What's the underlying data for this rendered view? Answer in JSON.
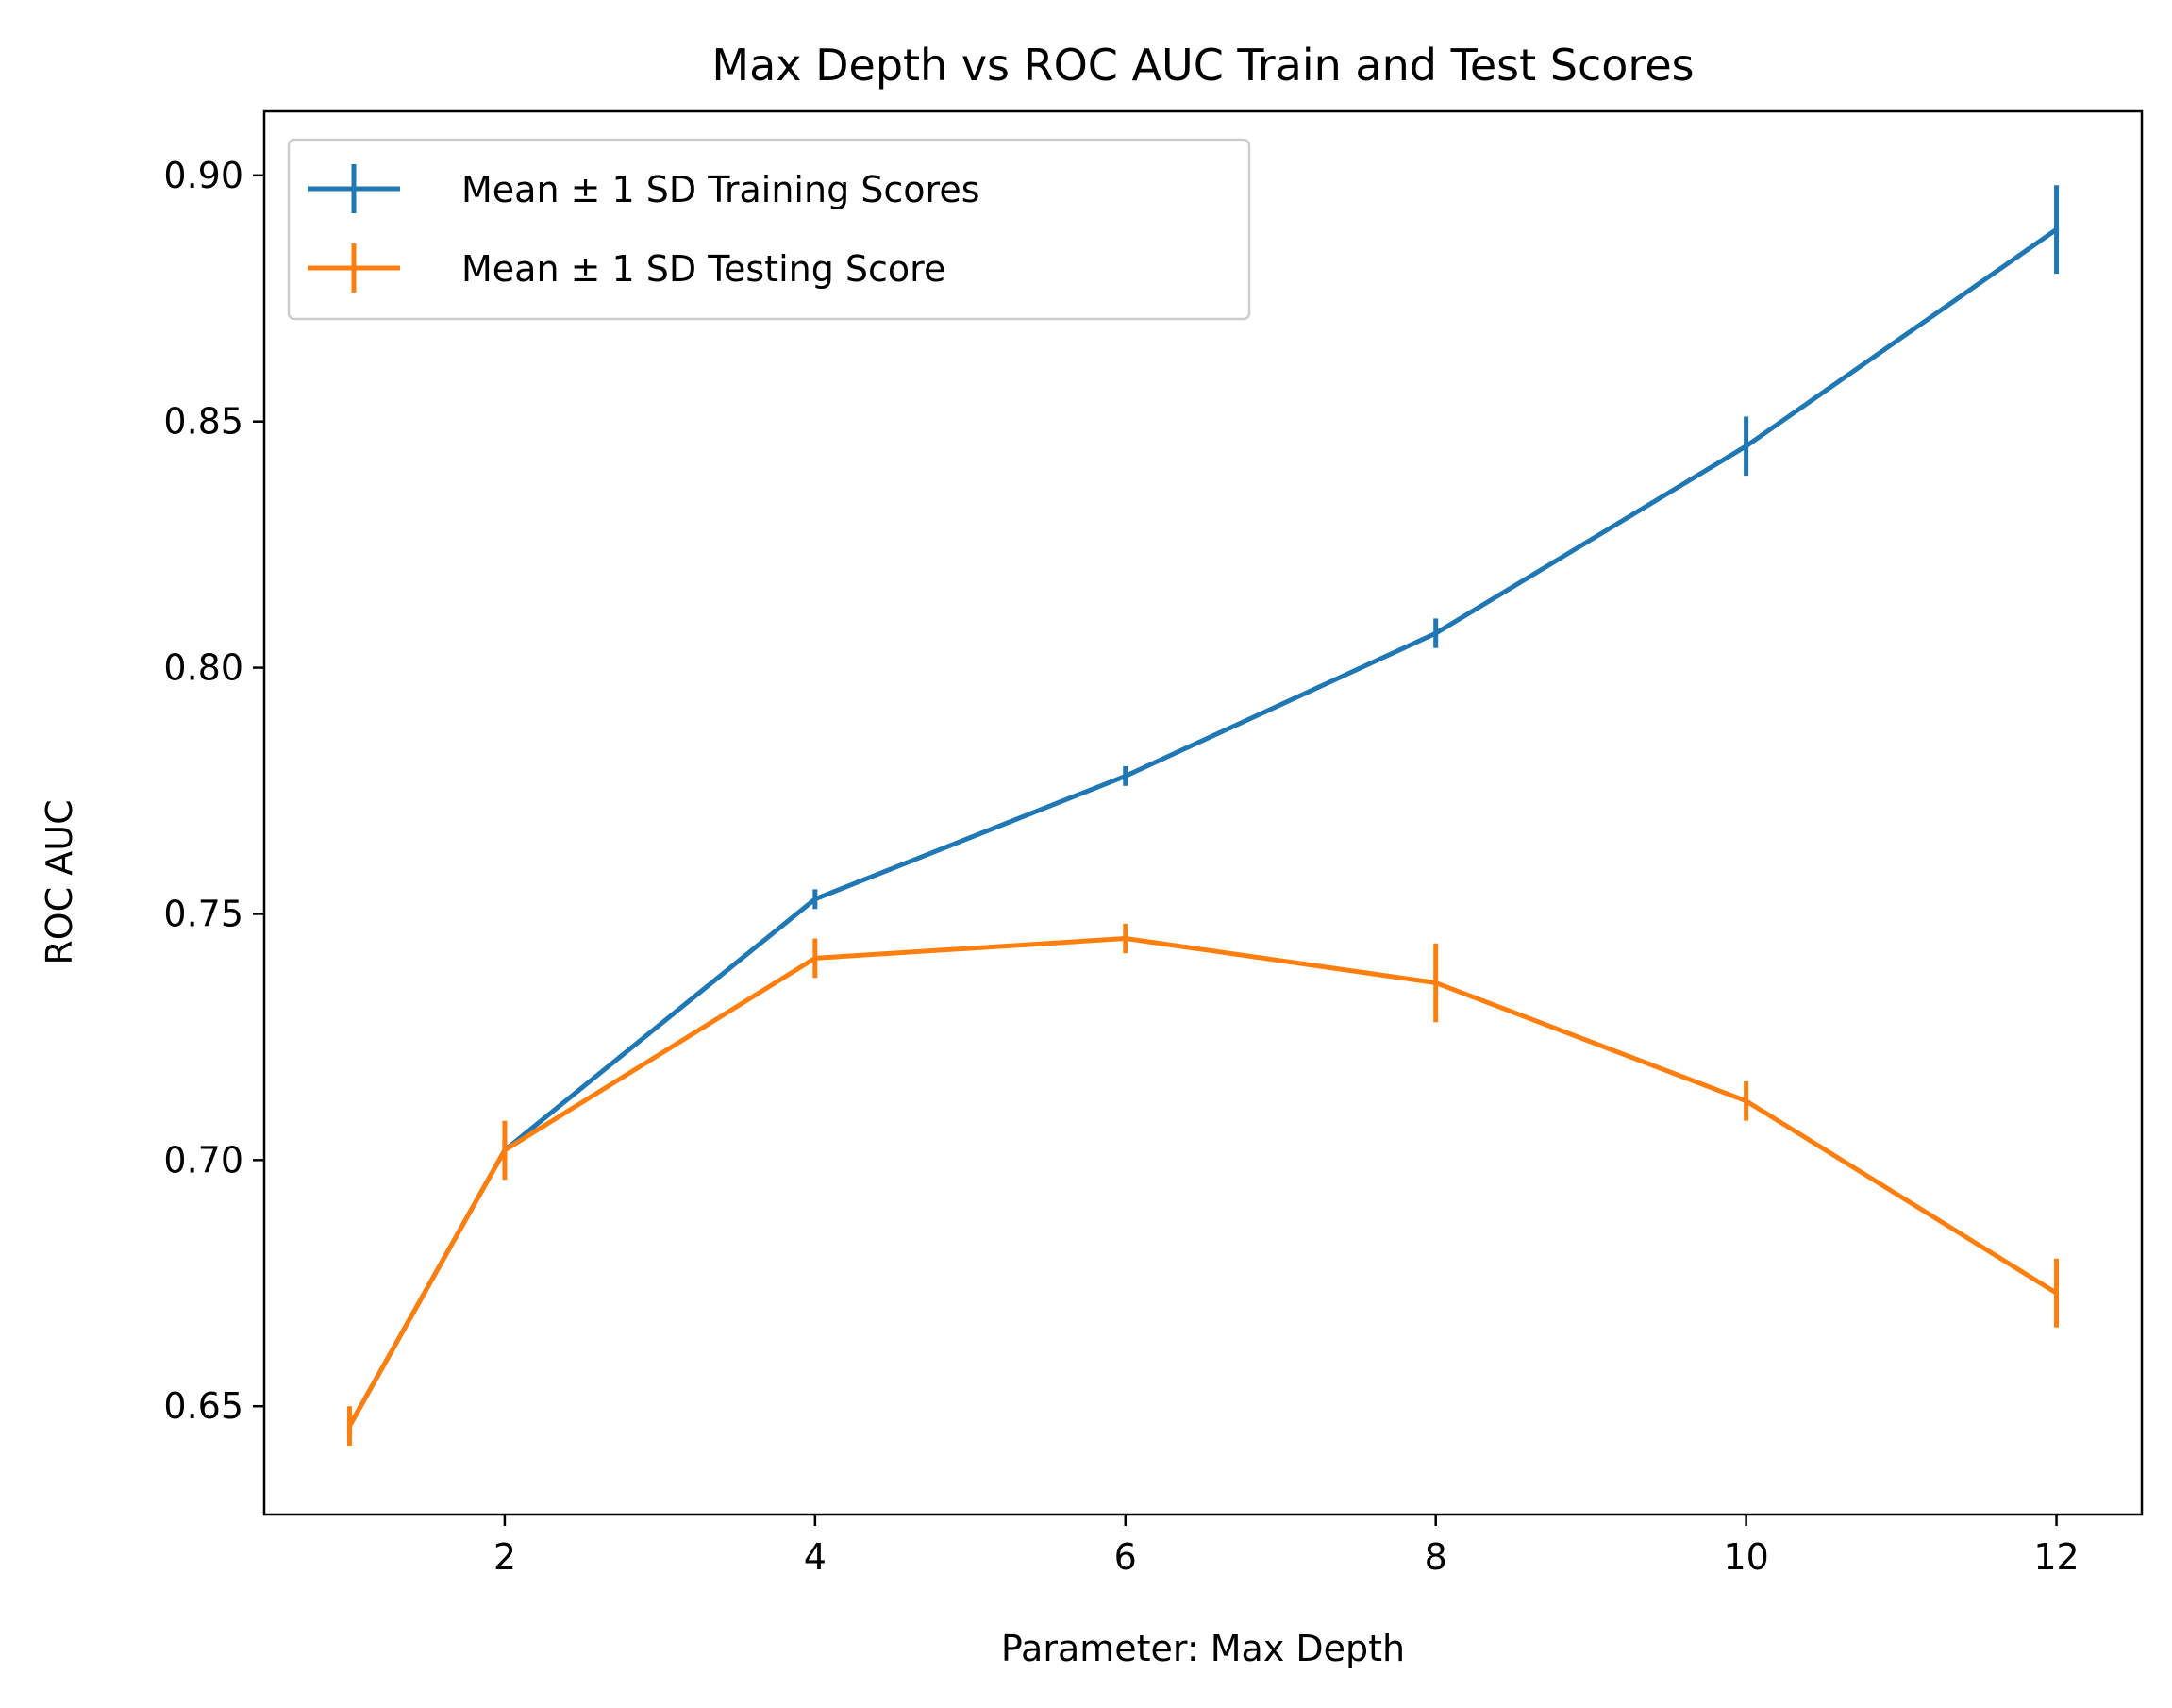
{
  "chart_data": {
    "type": "line",
    "title": "Max Depth vs ROC AUC Train and Test Scores",
    "xlabel": "Parameter: Max Depth",
    "ylabel": "ROC AUC",
    "xlim": [
      0.45,
      12.55
    ],
    "ylim": [
      0.628,
      0.913
    ],
    "x_ticks": [
      2,
      4,
      6,
      8,
      10,
      12
    ],
    "x_tick_labels": [
      "2",
      "4",
      "6",
      "8",
      "10",
      "12"
    ],
    "y_ticks": [
      0.65,
      0.7,
      0.75,
      0.8,
      0.85,
      0.9
    ],
    "y_tick_labels": [
      "0.65",
      "0.70",
      "0.75",
      "0.80",
      "0.85",
      "0.90"
    ],
    "grid": false,
    "legend_position": "top-left",
    "x": [
      1,
      2,
      4,
      6,
      8,
      10,
      12
    ],
    "series": [
      {
        "name": "Mean ± 1 SD Training Scores",
        "color": "#1f77b4",
        "values": [
          0.646,
          0.702,
          0.753,
          0.778,
          0.807,
          0.845,
          0.889
        ],
        "errors": [
          0.002,
          0.002,
          0.002,
          0.002,
          0.003,
          0.006,
          0.009
        ]
      },
      {
        "name": "Mean ± 1 SD Testing Score",
        "color": "#ff7f0e",
        "values": [
          0.646,
          0.702,
          0.741,
          0.745,
          0.736,
          0.712,
          0.673
        ],
        "errors": [
          0.004,
          0.006,
          0.004,
          0.003,
          0.008,
          0.004,
          0.007
        ]
      }
    ]
  }
}
